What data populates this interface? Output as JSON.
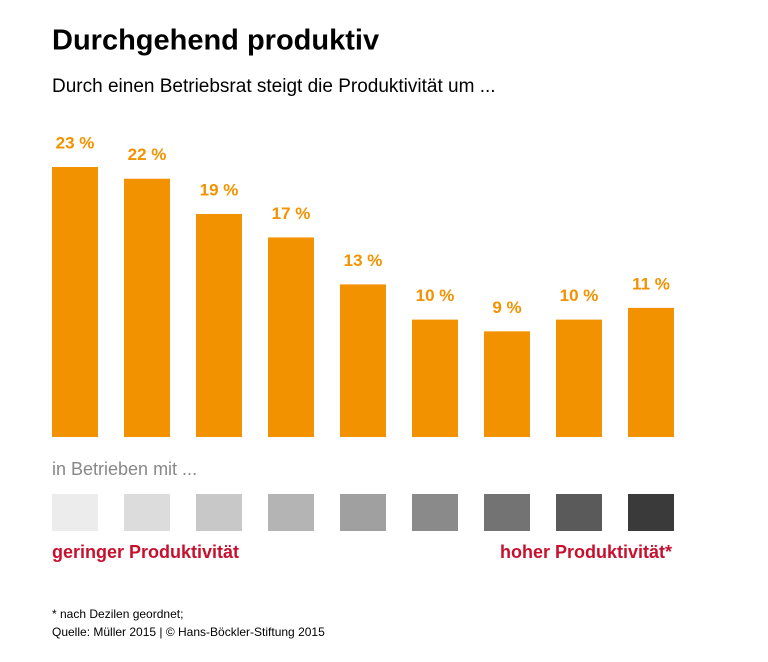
{
  "chart_data": {
    "type": "bar",
    "title": "Durchgehend produktiv",
    "subtitle": "Durch einen Betriebsrat steigt die Produktivität um ...",
    "categories": [
      null,
      null,
      null,
      null,
      null,
      null,
      null,
      null,
      null
    ],
    "values": [
      23,
      22,
      19,
      17,
      13,
      10,
      9,
      10,
      11
    ],
    "value_labels": [
      "23 %",
      "22 %",
      "19 %",
      "17 %",
      "13 %",
      "10 %",
      "9 %",
      "10 %",
      "11 %"
    ],
    "color": "#f39200",
    "legend_title": "in Betrieben mit ...",
    "legend_colors": [
      "#ececec",
      "#dcdcdc",
      "#c8c8c8",
      "#b4b4b4",
      "#a0a0a0",
      "#8a8a8a",
      "#737373",
      "#5a5a5a",
      "#3a3a3a"
    ],
    "legend_low": "geringer Produktivität",
    "legend_high": "hoher Produktivität*",
    "footnote": "* nach Dezilen geordnet;",
    "source": "Quelle: Müller 2015 | © Hans-Böckler-Stiftung 2015"
  }
}
